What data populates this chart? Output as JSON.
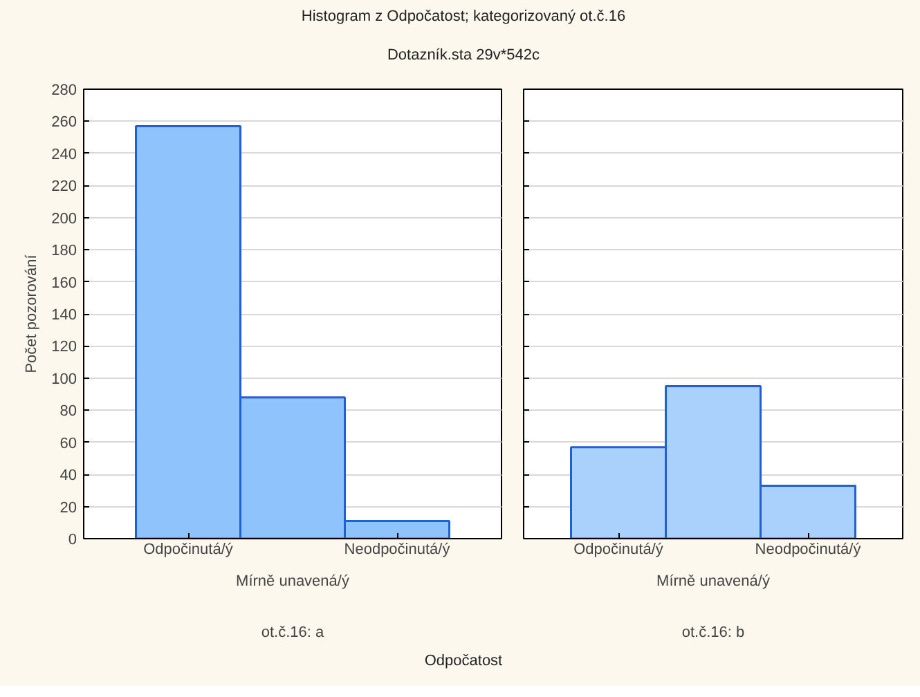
{
  "chart_data": [
    {
      "type": "bar",
      "title": "Histogram z Odpočatost; kategorizovaný ot.č.16",
      "subtitle": "Dotazník.sta 29v*542c",
      "xlabel": "Odpočatost",
      "ylabel": "Počet pozorování",
      "categories": [
        "Odpočinutá/ý",
        "Mírně unavená/ý",
        "Neodpočinutá/ý"
      ],
      "values": [
        257,
        88,
        11
      ],
      "color": "#8ec3fb",
      "ylim": [
        0,
        280
      ],
      "yticks": [
        0,
        20,
        40,
        60,
        80,
        100,
        120,
        140,
        160,
        180,
        200,
        220,
        240,
        260,
        280
      ],
      "grid": "y",
      "annotations": [
        "ot.č.16: a"
      ]
    },
    {
      "type": "bar",
      "categories": [
        "Odpočinutá/ý",
        "Mírně unavená/ý",
        "Neodpočinutá/ý"
      ],
      "values": [
        57,
        95,
        33
      ],
      "color": "#a9d1fc",
      "ylim": [
        0,
        280
      ],
      "yticks": [
        0,
        20,
        40,
        60,
        80,
        100,
        120,
        140,
        160,
        180,
        200,
        220,
        240,
        260,
        280
      ],
      "grid": "y",
      "tick_labels": "x",
      "annotations": [
        "ot.č.16: b"
      ]
    }
  ]
}
